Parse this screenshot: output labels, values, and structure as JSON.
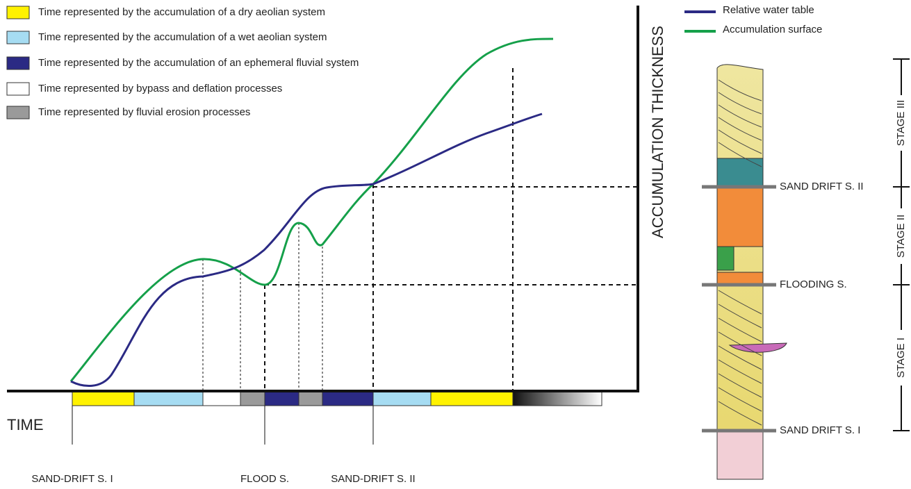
{
  "legend": {
    "items": [
      {
        "label": "Time represented by the accumulation of a dry aeolian system"
      },
      {
        "label": "Time represented by the accumulation of a wet aeolian system"
      },
      {
        "label": "Time represented by the accumulation of an ephemeral fluvial system"
      },
      {
        "label": "Time represented by bypass and deflation processes"
      },
      {
        "label": "Time represented by fluvial erosion processes"
      }
    ]
  },
  "curve_legend": {
    "items": [
      {
        "label": "Relative water table"
      },
      {
        "label": "Accumulation surface"
      }
    ]
  },
  "axes": {
    "y_label": "ACCUMULATION THICKNESS",
    "x_label": "TIME"
  },
  "time_markers": [
    "SAND-DRIFT S. I",
    "FLOOD S.",
    "SAND-DRIFT S. II"
  ],
  "column": {
    "surfaces": [
      "SAND DRIFT S. II",
      "FLOODING S.",
      "SAND DRIFT S. I"
    ],
    "stages": [
      "STAGE III",
      "STAGE II",
      "STAGE I"
    ]
  }
}
